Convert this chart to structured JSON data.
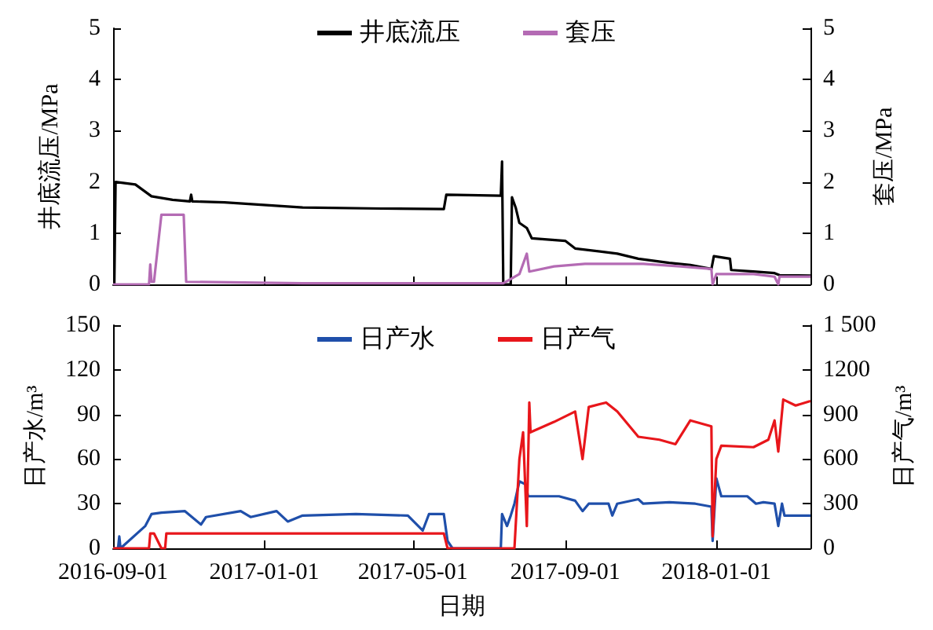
{
  "chart_data": [
    {
      "type": "line",
      "ylabel": "井底流压/MPa",
      "y2label": "套压/MPa",
      "xlim": [
        "2016-09-01",
        "2018-03-18"
      ],
      "xticks": [
        "2016-09-01",
        "2017-01-01",
        "2017-05-01",
        "2017-09-01",
        "2018-01-01"
      ],
      "ylim": [
        0,
        5
      ],
      "yticks": [
        0,
        1,
        2,
        3,
        4,
        5
      ],
      "y2lim": [
        0,
        5
      ],
      "y2ticks": [
        0,
        1,
        2,
        3,
        4,
        5
      ],
      "tick_labels": "y",
      "legend": "top",
      "grid": false,
      "series": [
        {
          "name": "井底流压",
          "color": "#000000",
          "x": [
            "2016-09-01",
            "2016-09-02",
            "2016-09-03",
            "2016-09-19",
            "2016-10-02",
            "2016-10-19",
            "2016-11-02",
            "2016-11-03",
            "2016-11-04",
            "2016-11-30",
            "2017-02-01",
            "2017-04-06",
            "2017-05-26",
            "2017-05-28",
            "2017-07-11",
            "2017-07-12",
            "2017-07-13",
            "2017-07-19",
            "2017-07-20",
            "2017-07-23",
            "2017-07-26",
            "2017-08-01",
            "2017-08-05",
            "2017-09-01",
            "2017-09-09",
            "2017-10-13",
            "2017-10-30",
            "2017-11-24",
            "2017-12-11",
            "2017-12-28",
            "2017-12-30",
            "2018-01-12",
            "2018-01-13",
            "2018-01-31",
            "2018-02-17",
            "2018-02-21",
            "2018-03-18"
          ],
          "values": [
            0,
            0,
            2.0,
            1.95,
            1.72,
            1.65,
            1.62,
            1.75,
            1.62,
            1.6,
            1.5,
            1.48,
            1.47,
            1.75,
            1.73,
            2.4,
            0,
            0,
            1.7,
            1.5,
            1.2,
            1.1,
            0.9,
            0.85,
            0.7,
            0.6,
            0.5,
            0.42,
            0.38,
            0.3,
            0.55,
            0.5,
            0.28,
            0.25,
            0.22,
            0.18,
            0.17
          ]
        },
        {
          "name": "套压",
          "color": "#b46bb4",
          "axis": "y2",
          "x": [
            "2016-09-01",
            "2016-09-30",
            "2016-10-01",
            "2016-10-02",
            "2016-10-04",
            "2016-10-10",
            "2016-10-28",
            "2016-10-30",
            "2017-02-01",
            "2017-07-13",
            "2017-07-26",
            "2017-08-01",
            "2017-08-03",
            "2017-08-23",
            "2017-09-17",
            "2017-11-03",
            "2017-12-03",
            "2017-12-28",
            "2017-12-29",
            "2018-01-01",
            "2018-01-31",
            "2018-02-17",
            "2018-02-20",
            "2018-02-21",
            "2018-03-18"
          ],
          "values": [
            0,
            0,
            0.39,
            0.05,
            0.05,
            1.36,
            1.36,
            0.05,
            0.02,
            0.02,
            0.2,
            0.6,
            0.25,
            0.35,
            0.4,
            0.4,
            0.35,
            0.3,
            0,
            0.2,
            0.2,
            0.15,
            0,
            0.15,
            0.15
          ]
        }
      ]
    },
    {
      "type": "line",
      "xlabel": "日期",
      "ylabel": "日产水/m³",
      "y2label": "日产气/m³",
      "xlim": [
        "2016-09-01",
        "2018-03-18"
      ],
      "xticks": [
        "2016-09-01",
        "2017-01-01",
        "2017-05-01",
        "2017-09-01",
        "2018-01-01"
      ],
      "ylim": [
        0,
        150
      ],
      "yticks": [
        0,
        30,
        60,
        90,
        120,
        150
      ],
      "y2lim": [
        0,
        1500
      ],
      "y2ticks": [
        0,
        300,
        600,
        900,
        1200,
        {
          "value": 1500,
          "label": "1 500"
        }
      ],
      "legend": "top",
      "grid": false,
      "series": [
        {
          "name": "日产水",
          "color": "#1f4faa",
          "x": [
            "2016-09-01",
            "2016-09-05",
            "2016-09-06",
            "2016-09-07",
            "2016-09-27",
            "2016-10-02",
            "2016-10-10",
            "2016-10-29",
            "2016-11-11",
            "2016-11-15",
            "2016-12-13",
            "2016-12-21",
            "2017-01-11",
            "2017-01-20",
            "2017-02-01",
            "2017-03-16",
            "2017-04-27",
            "2017-05-09",
            "2017-05-14",
            "2017-05-26",
            "2017-05-29",
            "2017-06-02",
            "2017-07-11",
            "2017-07-12",
            "2017-07-16",
            "2017-07-19",
            "2017-07-22",
            "2017-07-26",
            "2017-07-31",
            "2017-08-02",
            "2017-08-27",
            "2017-09-09",
            "2017-09-15",
            "2017-09-20",
            "2017-10-06",
            "2017-10-09",
            "2017-10-13",
            "2017-10-30",
            "2017-11-03",
            "2017-11-24",
            "2017-12-15",
            "2017-12-28",
            "2017-12-29",
            "2018-01-01",
            "2018-01-05",
            "2018-01-26",
            "2018-02-02",
            "2018-02-08",
            "2018-02-17",
            "2018-02-20",
            "2018-02-23",
            "2018-02-25",
            "2018-03-18"
          ],
          "values": [
            0,
            0,
            8,
            0,
            15,
            23,
            24,
            25,
            16,
            21,
            25,
            21,
            25,
            18,
            22,
            23,
            22,
            12,
            23,
            23,
            5,
            0,
            0,
            23,
            15,
            22,
            30,
            45,
            43,
            35,
            35,
            32,
            25,
            30,
            30,
            22,
            30,
            33,
            30,
            31,
            30,
            28,
            5,
            47,
            35,
            35,
            30,
            31,
            30,
            15,
            30,
            22,
            22
          ]
        },
        {
          "name": "日产气",
          "color": "#e8161b",
          "axis": "y2",
          "x": [
            "2016-09-01",
            "2016-09-30",
            "2016-10-01",
            "2016-10-04",
            "2016-10-10",
            "2016-10-13",
            "2016-10-14",
            "2017-05-26",
            "2017-05-29",
            "2017-07-22",
            "2017-07-23",
            "2017-07-26",
            "2017-07-29",
            "2017-08-01",
            "2017-08-03",
            "2017-08-04",
            "2017-08-23",
            "2017-09-09",
            "2017-09-15",
            "2017-09-20",
            "2017-10-04",
            "2017-10-13",
            "2017-10-30",
            "2017-11-16",
            "2017-11-29",
            "2017-12-11",
            "2017-12-28",
            "2017-12-29",
            "2018-01-01",
            "2018-01-05",
            "2018-01-31",
            "2018-02-12",
            "2018-02-17",
            "2018-02-20",
            "2018-02-24",
            "2018-03-06",
            "2018-03-18"
          ],
          "values": [
            0,
            0,
            100,
            100,
            0,
            0,
            100,
            100,
            0,
            0,
            150,
            600,
            780,
            150,
            980,
            780,
            850,
            920,
            600,
            950,
            980,
            920,
            750,
            730,
            700,
            860,
            820,
            80,
            600,
            690,
            680,
            730,
            860,
            650,
            1000,
            960,
            990
          ]
        }
      ]
    }
  ]
}
